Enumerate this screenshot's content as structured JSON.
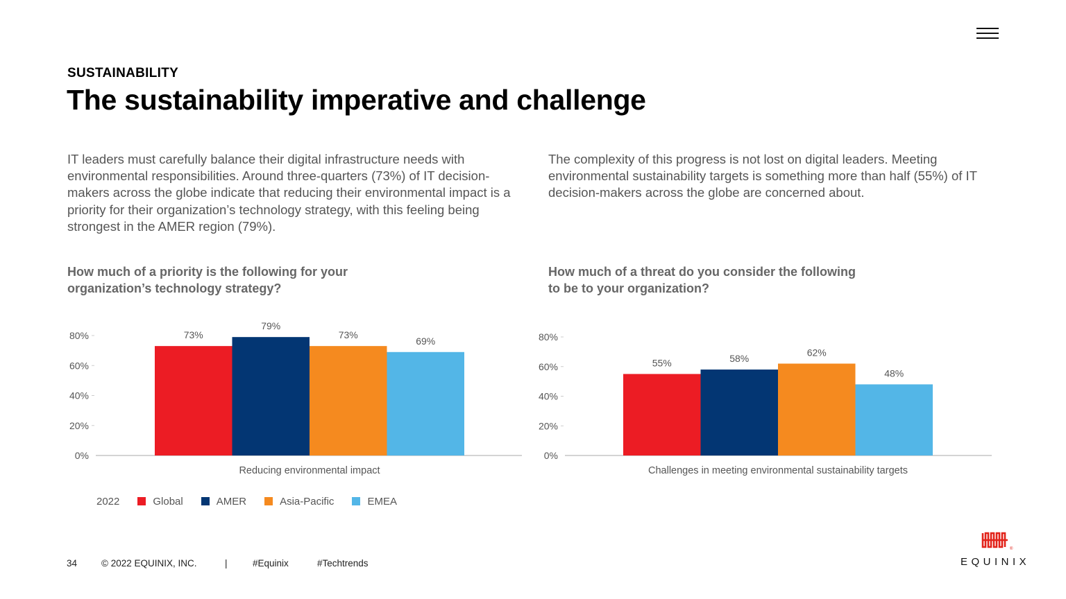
{
  "header": {
    "kicker": "SUSTAINABILITY",
    "title": "The sustainability imperative and challenge"
  },
  "paragraphs": {
    "left": "IT leaders must carefully balance their digital infrastructure needs with environmental responsibilities. Around three-quarters (73%) of IT decision-makers across the globe indicate that reducing their environmental impact is a priority for their organization’s technology strategy, with this feeling being strongest in the AMER region (79%).",
    "right": "The complexity of this progress is not lost on digital leaders. Meeting environmental sustainability targets is something more than half (55%) of IT decision-makers across the globe are concerned about."
  },
  "questions": {
    "left": "How much of a priority is the following for your organization’s technology strategy?",
    "right": "How much of a threat do you consider the following to be to your organization?"
  },
  "colors": {
    "Global": "#ec1c24",
    "AMER": "#033673",
    "Asia-Pacific": "#f58a1f",
    "EMEA": "#53b6e7",
    "logo": "#e2231a"
  },
  "chart_data": [
    {
      "type": "bar",
      "categories": [
        "Reducing environmental impact"
      ],
      "series": [
        {
          "name": "Global",
          "values": [
            73
          ]
        },
        {
          "name": "AMER",
          "values": [
            79
          ]
        },
        {
          "name": "Asia-Pacific",
          "values": [
            73
          ]
        },
        {
          "name": "EMEA",
          "values": [
            69
          ]
        }
      ],
      "data_labels": [
        "73%",
        "79%",
        "73%",
        "69%"
      ],
      "xlabel": "Reducing environmental impact",
      "ylabel": "",
      "ylim": [
        0,
        80
      ],
      "yticks": [
        "0%",
        "20%",
        "40%",
        "60%",
        "80%"
      ]
    },
    {
      "type": "bar",
      "categories": [
        "Challenges in meeting environmental sustainability targets"
      ],
      "series": [
        {
          "name": "Global",
          "values": [
            55
          ]
        },
        {
          "name": "AMER",
          "values": [
            58
          ]
        },
        {
          "name": "Asia-Pacific",
          "values": [
            62
          ]
        },
        {
          "name": "EMEA",
          "values": [
            48
          ]
        }
      ],
      "data_labels": [
        "55%",
        "58%",
        "62%",
        "48%"
      ],
      "xlabel": "Challenges in meeting environmental sustainability targets",
      "ylabel": "",
      "ylim": [
        0,
        80
      ],
      "yticks": [
        "0%",
        "20%",
        "40%",
        "60%",
        "80%"
      ]
    }
  ],
  "legend": {
    "year": "2022",
    "items": [
      "Global",
      "AMER",
      "Asia-Pacific",
      "EMEA"
    ]
  },
  "footer": {
    "page": "34",
    "copyright": "© 2022 EQUINIX, INC.",
    "separator": "|",
    "tag1": "#Equinix",
    "tag2": "#Techtrends"
  },
  "logo": {
    "text": "EQUINIX",
    "registered": "®"
  },
  "icons": {
    "menu": "hamburger-menu-icon",
    "logo": "equinix-logo-icon"
  }
}
